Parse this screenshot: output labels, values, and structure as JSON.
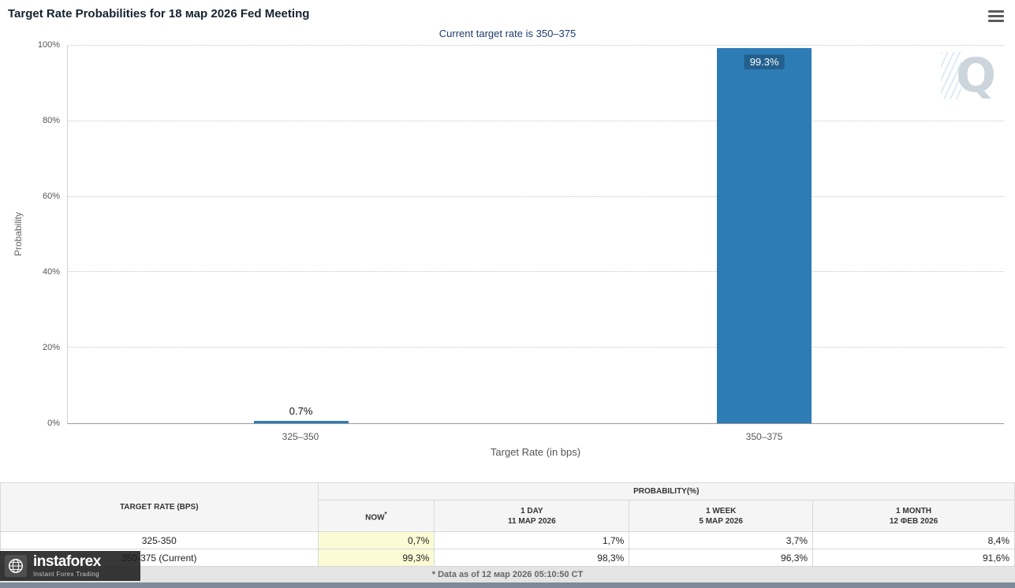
{
  "chart_data": {
    "type": "bar",
    "title": "Target Rate Probabilities for 18 мар 2026 Fed Meeting",
    "subtitle": "Current target rate is 350–375",
    "categories": [
      "325–350",
      "350–375"
    ],
    "values": [
      0.7,
      99.3
    ],
    "bar_labels": [
      "0.7%",
      "99.3%"
    ],
    "xlabel": "Target Rate (in bps)",
    "ylabel": "Probability",
    "ylim": [
      0,
      100
    ],
    "yticks": [
      "0%",
      "20%",
      "40%",
      "60%",
      "80%",
      "100%"
    ],
    "grid": "horizontal-dotted",
    "legend": "none",
    "bar_color": "#2e7cb5"
  },
  "table": {
    "target_rate_header": "TARGET RATE (BPS)",
    "probability_header": "PROBABILITY(%)",
    "columns": [
      {
        "line1": "NOW",
        "sup": "*",
        "line2": ""
      },
      {
        "line1": "1 DAY",
        "line2": "11 МАР 2026"
      },
      {
        "line1": "1 WEEK",
        "line2": "5 МАР 2026"
      },
      {
        "line1": "1 MONTH",
        "line2": "12 ФЕВ 2026"
      }
    ],
    "rows": [
      {
        "label": "325-350",
        "now": "0,7%",
        "day1": "1,7%",
        "week1": "3,7%",
        "month1": "8,4%"
      },
      {
        "label": "350-375 (Current)",
        "now": "99,3%",
        "day1": "98,3%",
        "week1": "96,3%",
        "month1": "91,6%"
      }
    ]
  },
  "footer": {
    "note": "* Data as of 12 мар 2026 05:10:50 CT"
  },
  "watermark": {
    "letter": "Q"
  },
  "logo": {
    "brand": "instaforex",
    "tagline": "Instant Forex Trading"
  }
}
